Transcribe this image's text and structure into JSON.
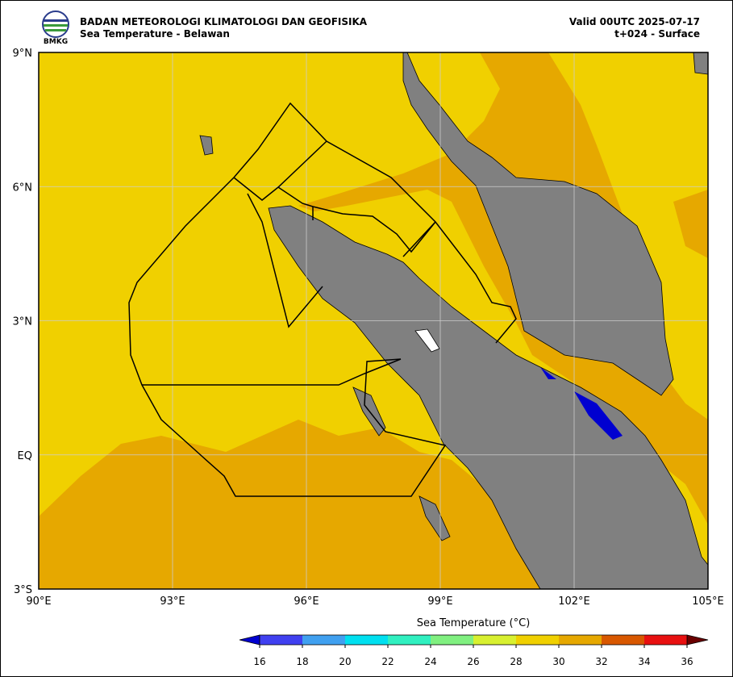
{
  "header": {
    "org": "BADAN METEOROLOGI KLIMATOLOGI DAN GEOFISIKA",
    "product": "Sea Temperature - Belawan",
    "valid": "Valid 00UTC 2025-07-17",
    "step": "t+024 - Surface",
    "logo_text": "BMKG"
  },
  "map": {
    "lat_labels": [
      "9°N",
      "6°N",
      "3°N",
      "EQ",
      "3°S"
    ],
    "lon_labels": [
      "90°E",
      "93°E",
      "96°E",
      "99°E",
      "102°E",
      "105°E"
    ],
    "sea_color": "#f0d000",
    "warm_color": "#e6a800",
    "land_color": "#808080"
  },
  "colorbar": {
    "title": "Sea Temperature (°C)",
    "ticks": [
      "16",
      "18",
      "20",
      "22",
      "24",
      "26",
      "28",
      "30",
      "32",
      "34",
      "36"
    ],
    "under": "#0000d0",
    "over": "#6a0000",
    "colors": [
      "#4040f0",
      "#40a0f0",
      "#00e0f0",
      "#30f0c0",
      "#80f080",
      "#d8f030",
      "#f0d000",
      "#e6a800",
      "#d85800",
      "#e81010"
    ]
  }
}
